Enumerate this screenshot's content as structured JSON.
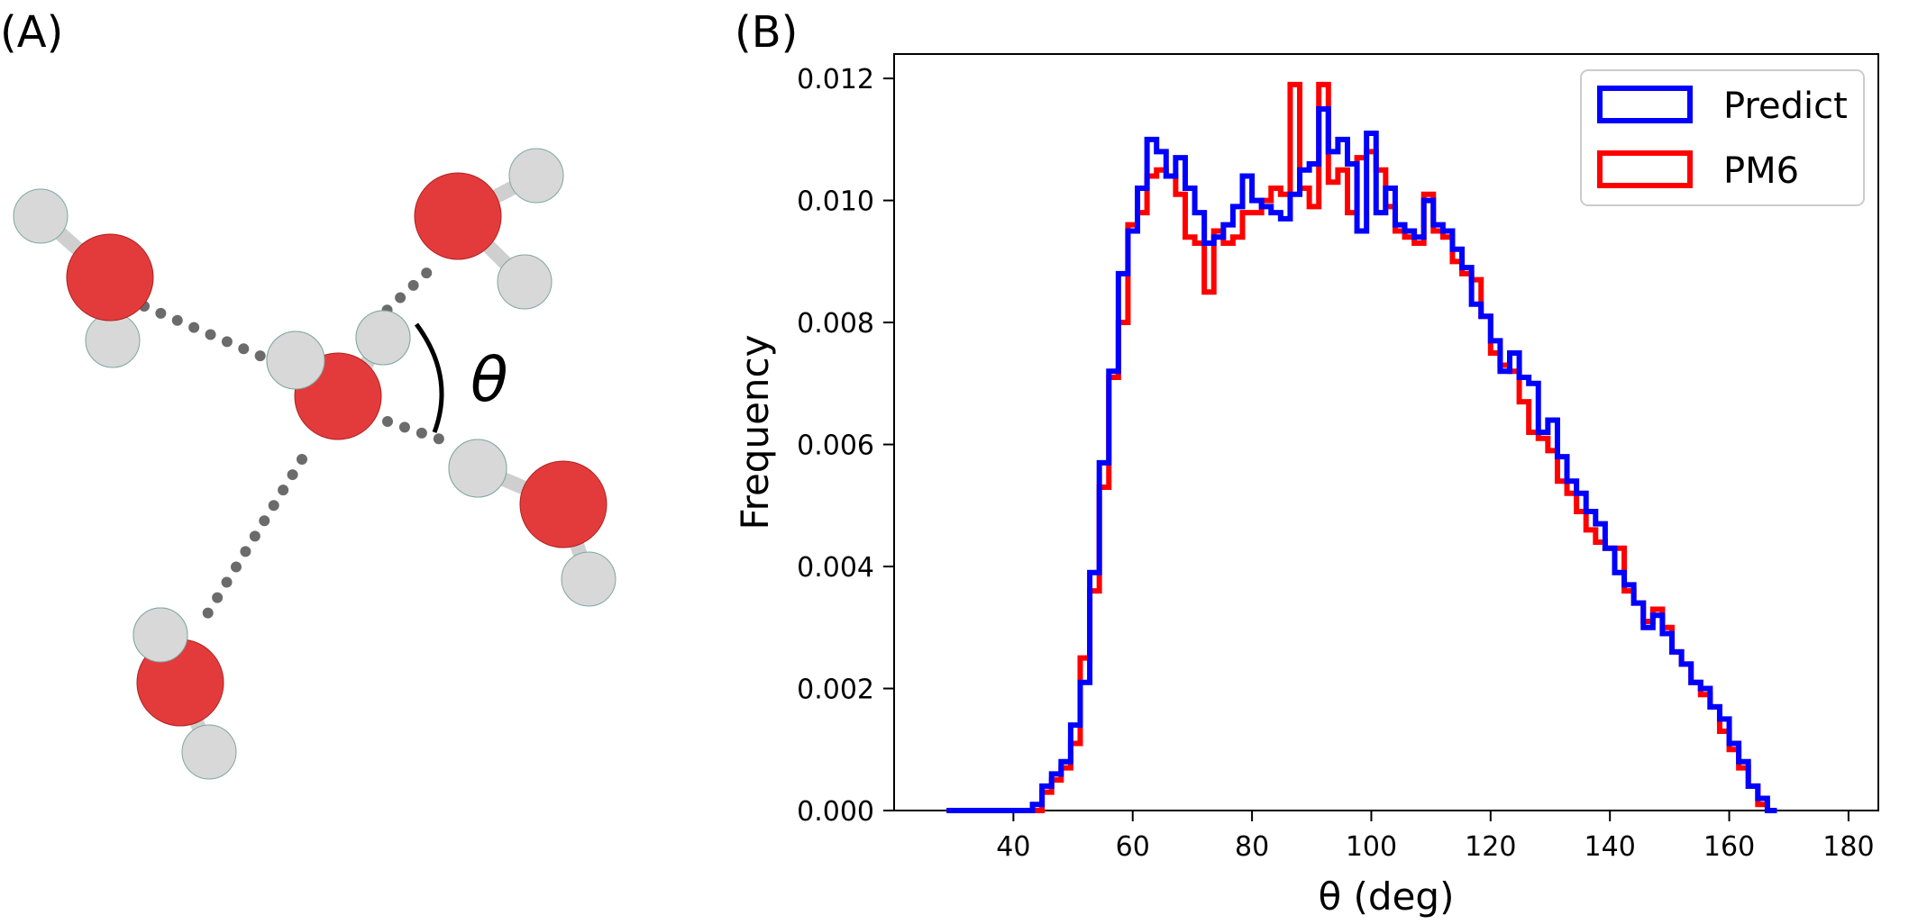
{
  "panels": {
    "a_label": "(A)",
    "b_label": "(B)",
    "angle_symbol": "θ"
  },
  "colors": {
    "predict": "#0000ff",
    "pm6": "#ff0000",
    "oxygen": "#e83a3a",
    "hydrogen": "#d6d6d6",
    "bond": "#606060"
  },
  "chart_data": {
    "type": "histogram",
    "xlabel": "θ (deg)",
    "ylabel": "Frequency",
    "xlim": [
      20,
      185
    ],
    "ylim": [
      0,
      0.0124
    ],
    "xticks": [
      40,
      60,
      80,
      100,
      120,
      140,
      160,
      180
    ],
    "yticks": [
      0.0,
      0.002,
      0.004,
      0.006,
      0.008,
      0.01,
      0.012
    ],
    "xtick_labels": [
      "40",
      "60",
      "80",
      "100",
      "120",
      "140",
      "160",
      "180"
    ],
    "ytick_labels": [
      "0.000",
      "0.002",
      "0.004",
      "0.006",
      "0.008",
      "0.010",
      "0.012"
    ],
    "grid": false,
    "legend_position": "top-right",
    "bin_width": 1.6,
    "bin_edges_start": 28.8,
    "series": [
      {
        "name": "Predict",
        "color": "#0000ff",
        "values": [
          0.0,
          0.0,
          0.0,
          0.0,
          0.0,
          0.0,
          0.0,
          0.0,
          0.0,
          0.0001,
          0.0004,
          0.0006,
          0.0008,
          0.0014,
          0.0021,
          0.0039,
          0.0057,
          0.0072,
          0.0088,
          0.0095,
          0.0102,
          0.011,
          0.0108,
          0.0104,
          0.0107,
          0.0102,
          0.0098,
          0.0093,
          0.0094,
          0.0096,
          0.0099,
          0.0104,
          0.01,
          0.0099,
          0.0098,
          0.0097,
          0.0101,
          0.0105,
          0.0106,
          0.0115,
          0.0108,
          0.011,
          0.0106,
          0.0095,
          0.0111,
          0.0098,
          0.0102,
          0.0096,
          0.0095,
          0.0094,
          0.01,
          0.0096,
          0.0095,
          0.0092,
          0.0089,
          0.0083,
          0.0081,
          0.0077,
          0.0072,
          0.0075,
          0.0071,
          0.007,
          0.0062,
          0.0064,
          0.0058,
          0.0054,
          0.0052,
          0.0049,
          0.0047,
          0.0043,
          0.0039,
          0.0037,
          0.0034,
          0.003,
          0.0032,
          0.0029,
          0.0026,
          0.0024,
          0.0021,
          0.002,
          0.0017,
          0.0015,
          0.0011,
          0.0008,
          0.0004,
          0.0002,
          0.0
        ]
      },
      {
        "name": "PM6",
        "color": "#ff0000",
        "values": [
          0.0,
          0.0,
          0.0,
          0.0,
          0.0,
          0.0,
          0.0,
          0.0,
          0.0,
          0.0,
          0.0003,
          0.0005,
          0.0007,
          0.0011,
          0.0025,
          0.0036,
          0.0053,
          0.0071,
          0.008,
          0.0096,
          0.0098,
          0.0104,
          0.0105,
          0.0104,
          0.0101,
          0.0094,
          0.0093,
          0.0085,
          0.0095,
          0.0093,
          0.0094,
          0.0098,
          0.0098,
          0.01,
          0.0102,
          0.0101,
          0.0119,
          0.0102,
          0.0099,
          0.0119,
          0.0103,
          0.0105,
          0.0098,
          0.0107,
          0.0108,
          0.0105,
          0.0099,
          0.0095,
          0.0094,
          0.0093,
          0.0101,
          0.0095,
          0.0094,
          0.009,
          0.0088,
          0.0087,
          0.0081,
          0.0075,
          0.0073,
          0.0072,
          0.0067,
          0.0062,
          0.0061,
          0.0059,
          0.0054,
          0.0052,
          0.0049,
          0.0046,
          0.0044,
          0.0043,
          0.0043,
          0.0036,
          0.0034,
          0.0031,
          0.0033,
          0.003,
          0.0026,
          0.0024,
          0.0021,
          0.0019,
          0.0017,
          0.0013,
          0.001,
          0.0007,
          0.0004,
          0.0001,
          0.0
        ]
      }
    ]
  }
}
